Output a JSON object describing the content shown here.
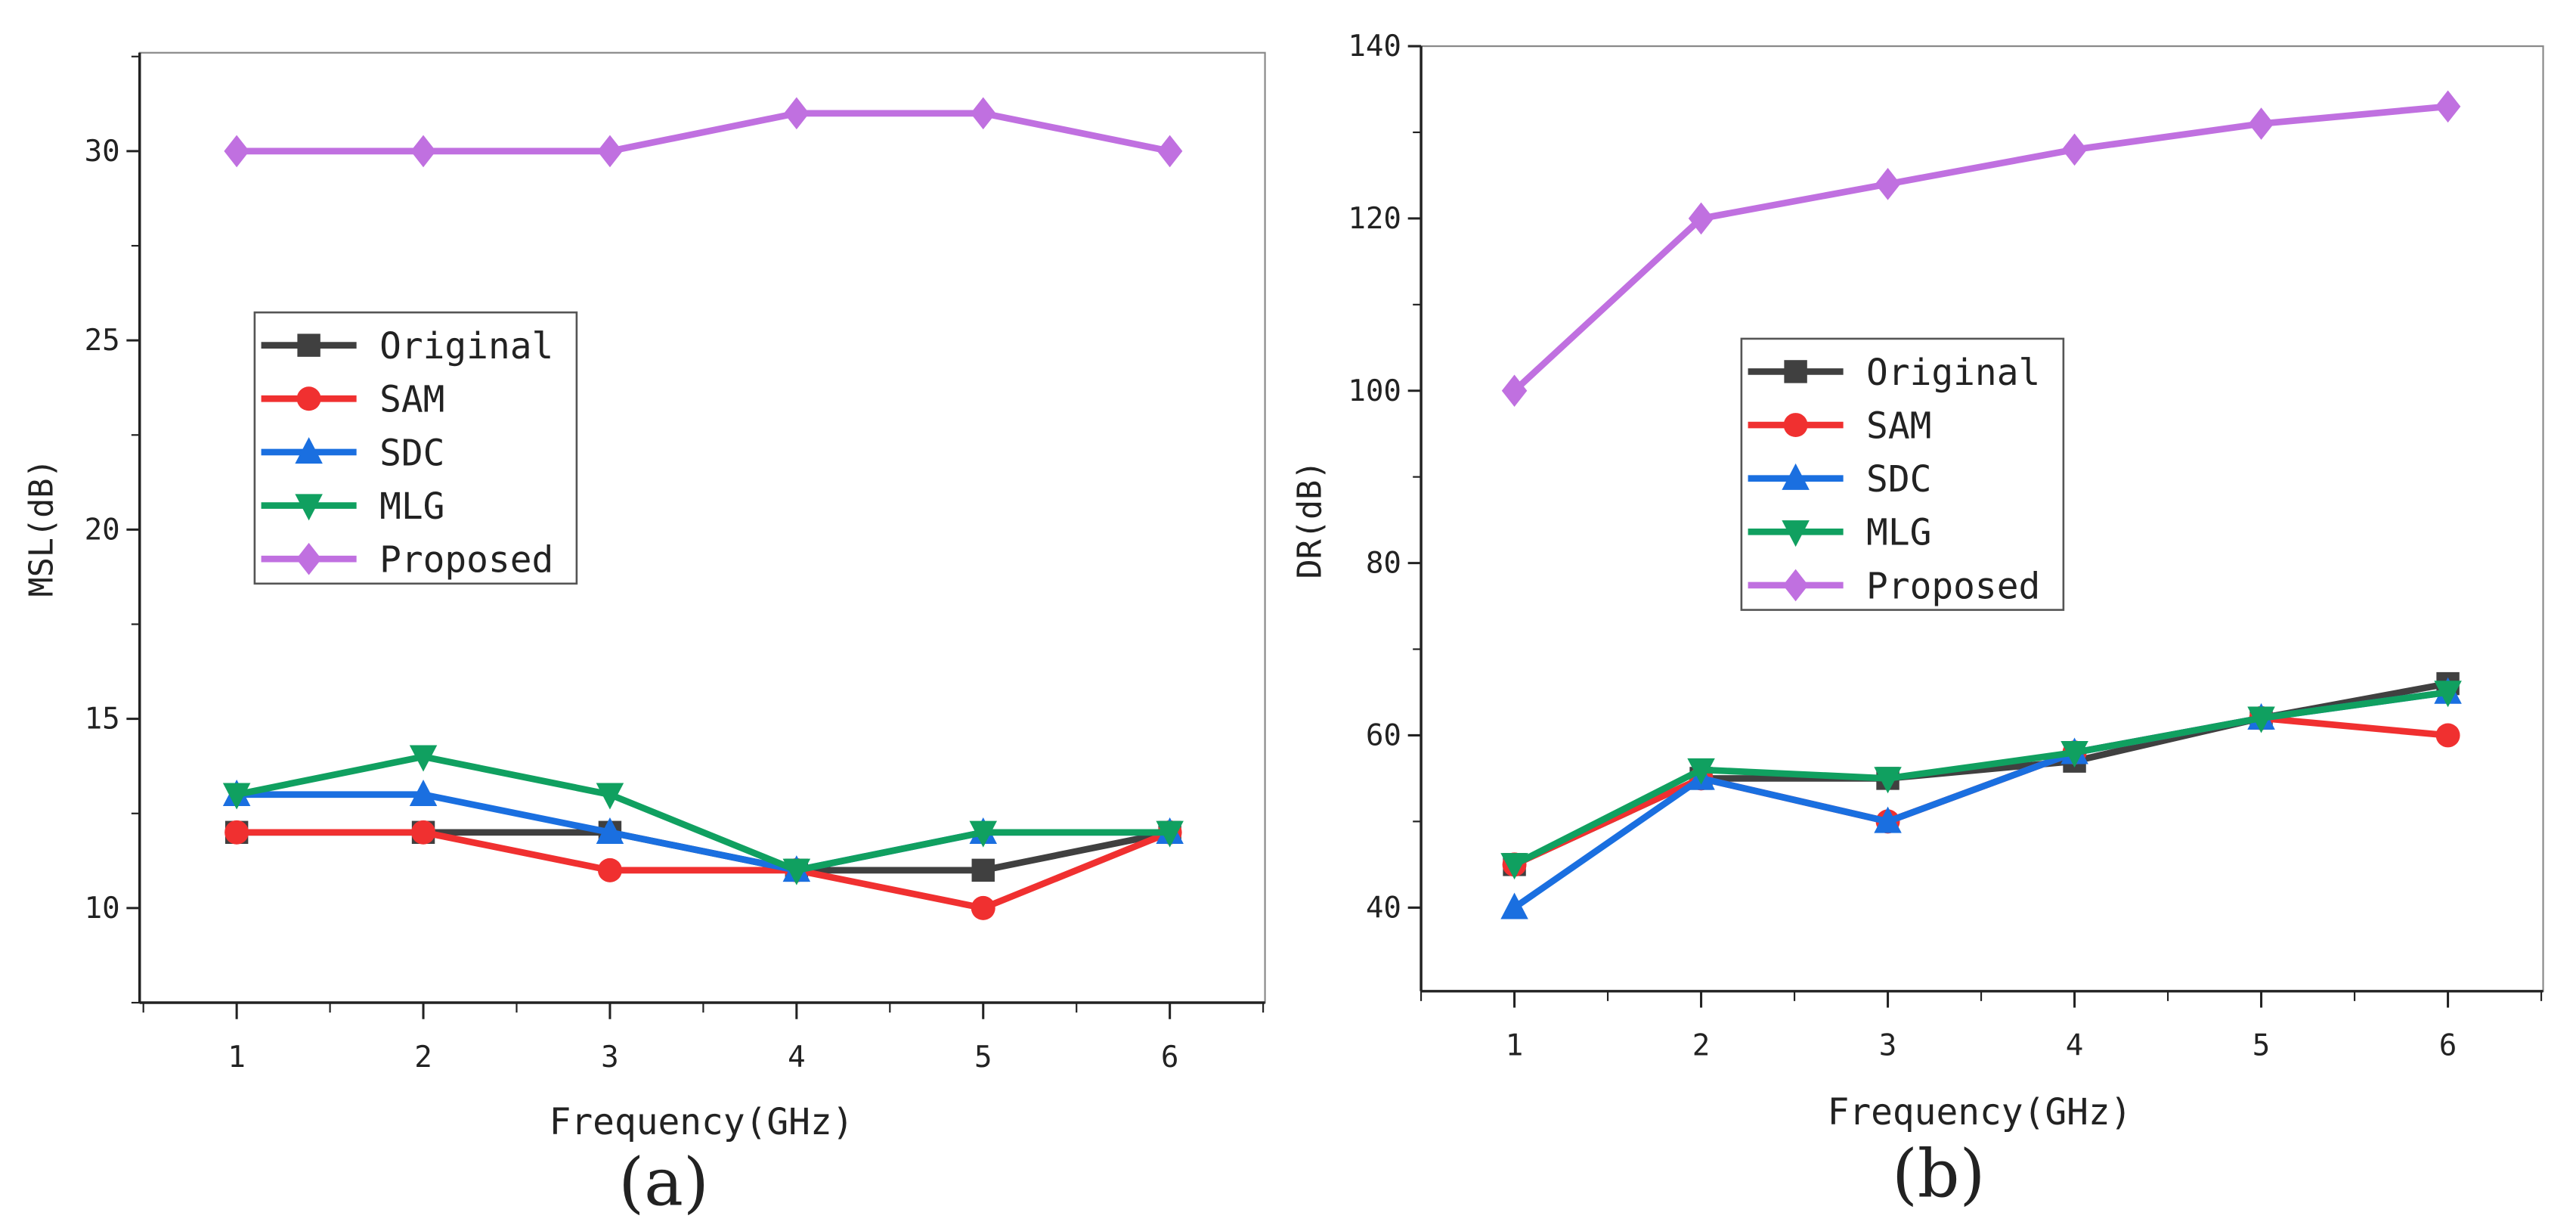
{
  "chart_data": [
    {
      "type": "line",
      "panel_label": "(a)",
      "xlabel": "Frequency(GHz)",
      "ylabel": "MSL(dB)",
      "x": [
        1,
        2,
        3,
        4,
        5,
        6
      ],
      "xlim": [
        0.48,
        6.51
      ],
      "ylim": [
        7.5,
        32.6
      ],
      "xticks": [
        1,
        2,
        3,
        4,
        5,
        6
      ],
      "yticks": [
        10,
        15,
        20,
        25,
        30
      ],
      "legend_placement": "center-left",
      "series": [
        {
          "name": "Original",
          "color": "#404040",
          "marker": "square",
          "values": [
            12,
            12,
            12,
            11,
            11,
            12
          ]
        },
        {
          "name": "SAM",
          "color": "#f03030",
          "marker": "circle",
          "values": [
            12,
            12,
            11,
            11,
            10,
            12
          ]
        },
        {
          "name": "SDC",
          "color": "#1a6fe0",
          "marker": "triangle-up",
          "values": [
            13,
            13,
            12,
            11,
            12,
            12
          ]
        },
        {
          "name": "MLG",
          "color": "#10a060",
          "marker": "triangle-down",
          "values": [
            13,
            14,
            13,
            11,
            12,
            12
          ]
        },
        {
          "name": "Proposed",
          "color": "#c070e0",
          "marker": "diamond",
          "values": [
            30,
            30,
            30,
            31,
            31,
            30
          ]
        }
      ]
    },
    {
      "type": "line",
      "panel_label": "(b)",
      "xlabel": "Frequency(GHz)",
      "ylabel": "DR(dB)",
      "x": [
        1,
        2,
        3,
        4,
        5,
        6
      ],
      "xlim": [
        0.5,
        6.51
      ],
      "ylim": [
        30.3,
        140
      ],
      "xticks": [
        1,
        2,
        3,
        4,
        5,
        6
      ],
      "yticks": [
        40,
        60,
        80,
        100,
        120,
        140
      ],
      "legend_placement": "center",
      "series": [
        {
          "name": "Original",
          "color": "#404040",
          "marker": "square",
          "values": [
            45,
            55,
            55,
            57,
            62,
            66
          ]
        },
        {
          "name": "SAM",
          "color": "#f03030",
          "marker": "circle",
          "values": [
            45,
            55,
            50,
            58,
            62,
            60
          ]
        },
        {
          "name": "SDC",
          "color": "#1a6fe0",
          "marker": "triangle-up",
          "values": [
            40,
            55,
            50,
            58,
            62,
            65
          ]
        },
        {
          "name": "MLG",
          "color": "#10a060",
          "marker": "triangle-down",
          "values": [
            45,
            56,
            55,
            58,
            62,
            65
          ]
        },
        {
          "name": "Proposed",
          "color": "#c070e0",
          "marker": "diamond",
          "values": [
            100,
            120,
            124,
            128,
            131,
            133
          ]
        }
      ]
    }
  ]
}
